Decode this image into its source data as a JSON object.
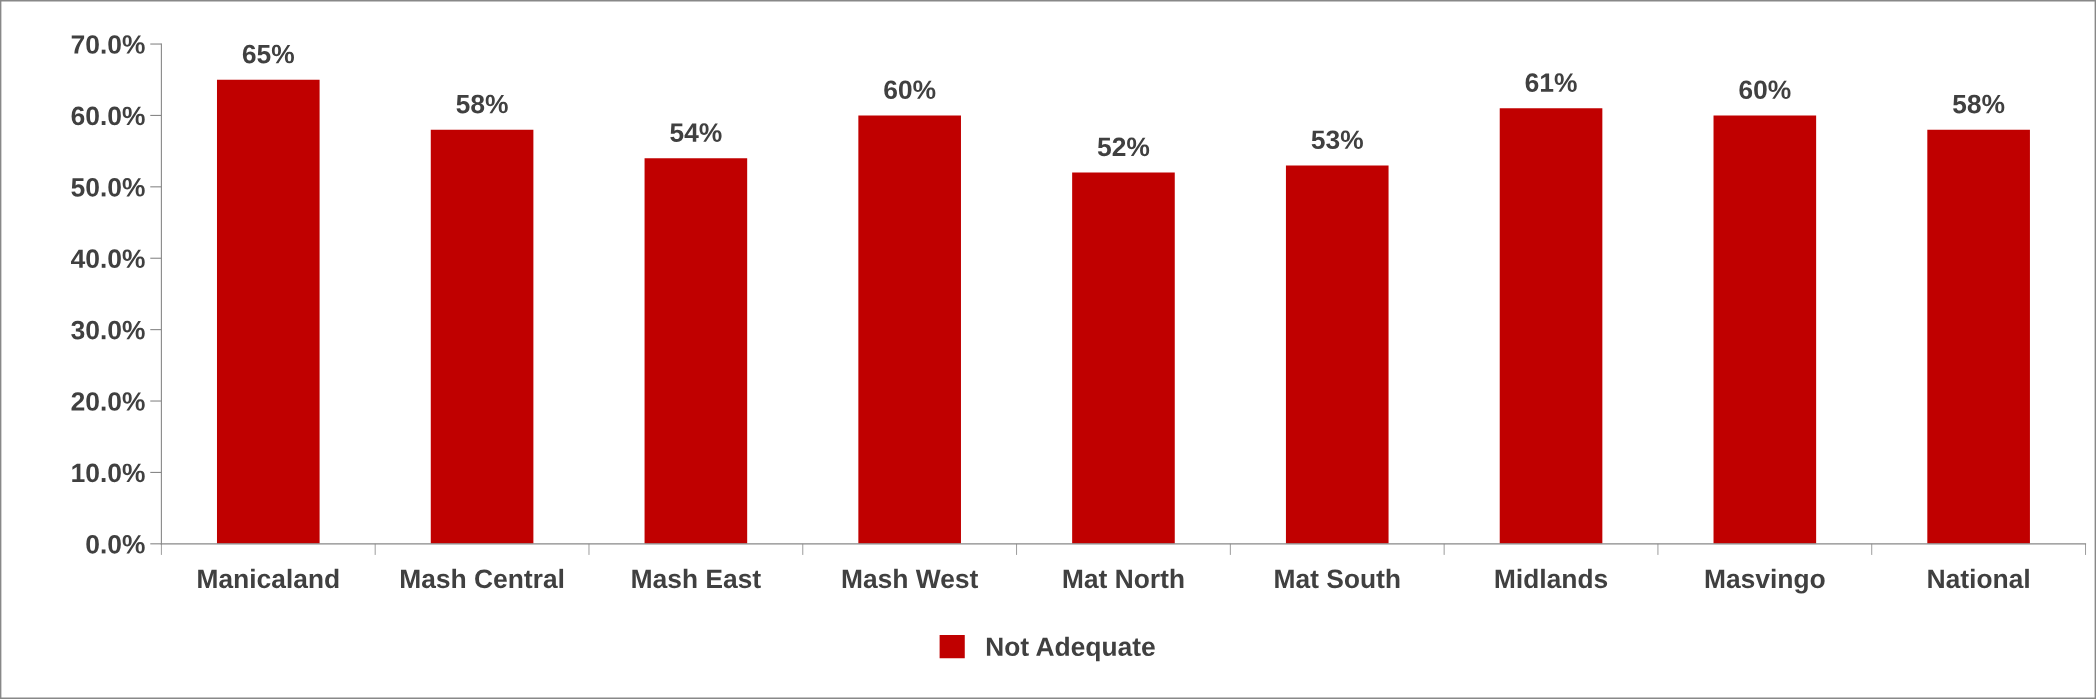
{
  "chart_data": {
    "type": "bar",
    "categories": [
      "Manicaland",
      "Mash Central",
      "Mash East",
      "Mash West",
      "Mat North",
      "Mat South",
      "Midlands",
      "Masvingo",
      "National"
    ],
    "series": [
      {
        "name": "Not Adequate",
        "color": "#c00000",
        "values": [
          65,
          58,
          54,
          60,
          52,
          53,
          61,
          60,
          58
        ],
        "value_labels": [
          "65%",
          "58%",
          "54%",
          "60%",
          "52%",
          "53%",
          "61%",
          "60%",
          "58%"
        ]
      }
    ],
    "ylim": [
      0,
      70
    ],
    "yticks": [
      {
        "value": 0,
        "label": "0.0%"
      },
      {
        "value": 10,
        "label": "10.0%"
      },
      {
        "value": 20,
        "label": "20.0%"
      },
      {
        "value": 30,
        "label": "30.0%"
      },
      {
        "value": 40,
        "label": "40.0%"
      },
      {
        "value": 50,
        "label": "50.0%"
      },
      {
        "value": 60,
        "label": "60.0%"
      },
      {
        "value": 70,
        "label": "70.0%"
      }
    ],
    "grid": false,
    "legend": "bottom"
  }
}
